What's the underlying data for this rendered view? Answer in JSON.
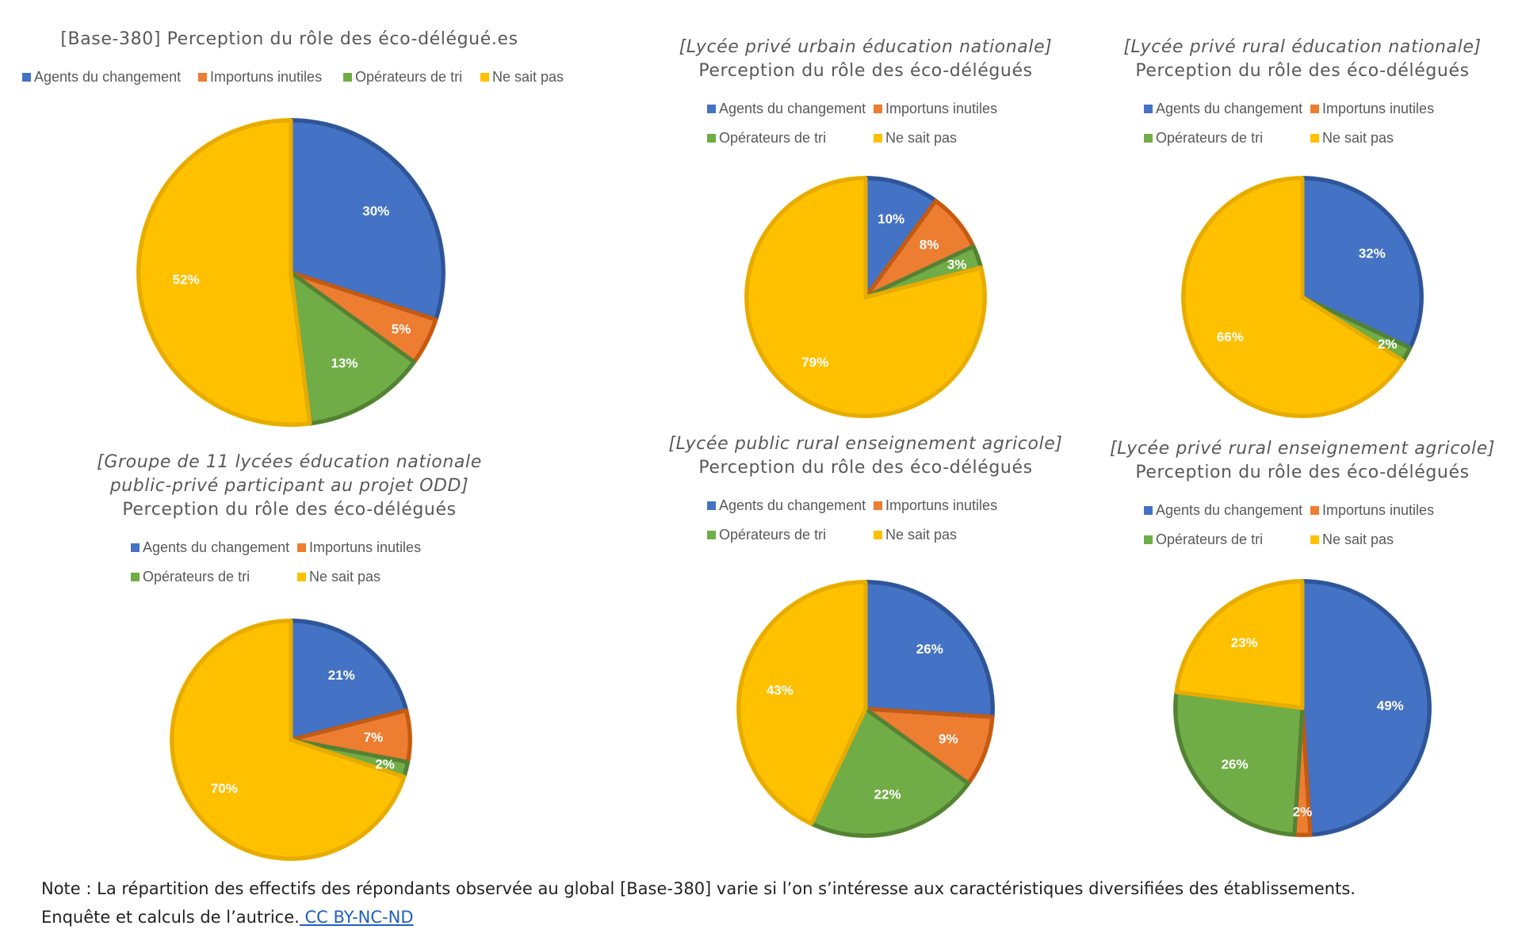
{
  "categories": [
    "Agents du changement",
    "Importuns inutiles",
    "Opérateurs de tri",
    "Ne sait pas"
  ],
  "colors": [
    "#4472C4",
    "#ED7D31",
    "#70AD47",
    "#FFC000"
  ],
  "chart_data": [
    {
      "type": "pie",
      "title_lines": [
        "[Base-380] Perception du rôle des éco-délégué.es"
      ],
      "categories": [
        "Agents du changement",
        "Importuns inutiles",
        "Opérateurs de tri",
        "Ne sait pas"
      ],
      "values": [
        30,
        5,
        13,
        52
      ],
      "labels": [
        "30%",
        "5%",
        "13%",
        "52%"
      ],
      "legend_position": "top"
    },
    {
      "type": "pie",
      "title_lines": [
        "[Lycée privé urbain éducation nationale]",
        "Perception du rôle des éco-délégués"
      ],
      "categories": [
        "Agents du changement",
        "Importuns inutiles",
        "Opérateurs de tri",
        "Ne sait pas"
      ],
      "values": [
        10,
        8,
        3,
        79
      ],
      "labels": [
        "10%",
        "8%",
        "3%",
        "79%"
      ],
      "legend_position": "top"
    },
    {
      "type": "pie",
      "title_lines": [
        "[Lycée privé rural éducation nationale]",
        "Perception du rôle des éco-délégués"
      ],
      "categories": [
        "Agents du changement",
        "Importuns inutiles",
        "Opérateurs de tri",
        "Ne sait pas"
      ],
      "values": [
        32,
        0,
        2,
        66
      ],
      "labels": [
        "32%",
        "",
        "2%",
        "66%"
      ],
      "legend_position": "top"
    },
    {
      "type": "pie",
      "title_lines": [
        "[Groupe de 11 lycées éducation nationale",
        "public-privé participant au projet ODD]",
        "Perception du rôle des éco-délégués"
      ],
      "categories": [
        "Agents du changement",
        "Importuns inutiles",
        "Opérateurs de tri",
        "Ne sait pas"
      ],
      "values": [
        21,
        7,
        2,
        70
      ],
      "labels": [
        "21%",
        "7%",
        "2%",
        "70%"
      ],
      "legend_position": "top"
    },
    {
      "type": "pie",
      "title_lines": [
        "[Lycée public rural enseignement agricole]",
        "Perception du rôle des éco-délégués"
      ],
      "categories": [
        "Agents du changement",
        "Importuns inutiles",
        "Opérateurs de tri",
        "Ne sait pas"
      ],
      "values": [
        26,
        9,
        22,
        43
      ],
      "labels": [
        "26%",
        "9%",
        "22%",
        "43%"
      ],
      "legend_position": "top"
    },
    {
      "type": "pie",
      "title_lines": [
        "[Lycée privé rural enseignement agricole]",
        "Perception du rôle des éco-délégués"
      ],
      "categories": [
        "Agents du changement",
        "Importuns inutiles",
        "Opérateurs de tri",
        "Ne sait pas"
      ],
      "values": [
        49,
        2,
        26,
        23
      ],
      "labels": [
        "49%",
        "2%",
        "26%",
        "23%"
      ],
      "legend_position": "top"
    }
  ],
  "note": {
    "line1": "Note : La répartition des effectifs des répondants observée au global [Base-380] varie si l’on s’intéresse aux caractéristiques diversifiées des établissements.",
    "line2": "Enquête et calculs de l’autrice.",
    "link": " CC BY-NC-ND"
  }
}
